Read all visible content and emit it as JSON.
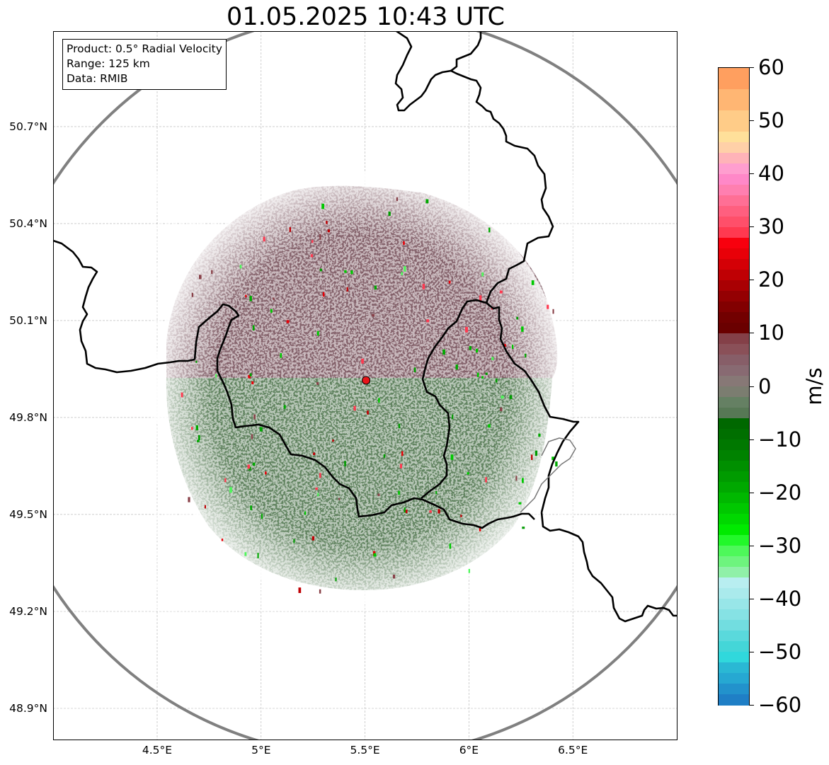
{
  "title": "01.05.2025 10:43 UTC",
  "info": {
    "product": "Product: 0.5° Radial Velocity",
    "range": "Range: 125 km",
    "data": "Data: RMIB"
  },
  "map": {
    "lon_range": [
      4.0,
      7.0
    ],
    "lat_range": [
      48.8,
      51.0
    ],
    "radar_site": {
      "lon": 5.505,
      "lat": 49.915,
      "color": "#e8161b"
    },
    "range_ring_color": "#808080",
    "border_color": "#000000",
    "gridlines": true,
    "lat_ticks": [
      {
        "value": 48.9,
        "label": "48.9°N"
      },
      {
        "value": 49.2,
        "label": "49.2°N"
      },
      {
        "value": 49.5,
        "label": "49.5°N"
      },
      {
        "value": 49.8,
        "label": "49.8°N"
      },
      {
        "value": 50.1,
        "label": "50.1°N"
      },
      {
        "value": 50.4,
        "label": "50.4°N"
      },
      {
        "value": 50.7,
        "label": "50.7°N"
      }
    ],
    "lon_ticks": [
      {
        "value": 4.5,
        "label": "4.5°E"
      },
      {
        "value": 5.0,
        "label": "5°E"
      },
      {
        "value": 5.5,
        "label": "5.5°E"
      },
      {
        "value": 6.0,
        "label": "6°E"
      },
      {
        "value": 6.5,
        "label": "6.5°E"
      }
    ],
    "echo_colors": {
      "north_inbound": "#7e5b64",
      "south_outbound": "#5a7d59"
    }
  },
  "colorbar": {
    "unit": "m/s",
    "min": -60,
    "max": 60,
    "ticks": [
      {
        "value": 60,
        "label": "60"
      },
      {
        "value": 50,
        "label": "50"
      },
      {
        "value": 40,
        "label": "40"
      },
      {
        "value": 30,
        "label": "30"
      },
      {
        "value": 20,
        "label": "20"
      },
      {
        "value": 10,
        "label": "10"
      },
      {
        "value": 0,
        "label": "0"
      },
      {
        "value": -10,
        "label": "−10"
      },
      {
        "value": -20,
        "label": "−20"
      },
      {
        "value": -30,
        "label": "−30"
      },
      {
        "value": -40,
        "label": "−40"
      },
      {
        "value": -50,
        "label": "−50"
      },
      {
        "value": -60,
        "label": "−60"
      }
    ],
    "bands": [
      {
        "from": 56,
        "to": 60,
        "color": "#ff9f5f"
      },
      {
        "from": 52,
        "to": 56,
        "color": "#ffb673"
      },
      {
        "from": 48,
        "to": 52,
        "color": "#ffcc88"
      },
      {
        "from": 46,
        "to": 48,
        "color": "#ffe09a"
      },
      {
        "from": 44,
        "to": 46,
        "color": "#ffd0a8"
      },
      {
        "from": 42,
        "to": 44,
        "color": "#ffb3b8"
      },
      {
        "from": 40,
        "to": 42,
        "color": "#ff9ecf"
      },
      {
        "from": 38,
        "to": 40,
        "color": "#ff88c8"
      },
      {
        "from": 36,
        "to": 38,
        "color": "#ff7fb0"
      },
      {
        "from": 34,
        "to": 36,
        "color": "#ff6f95"
      },
      {
        "from": 32,
        "to": 34,
        "color": "#ff5f7f"
      },
      {
        "from": 30,
        "to": 32,
        "color": "#ff4f6a"
      },
      {
        "from": 28,
        "to": 30,
        "color": "#ff3950"
      },
      {
        "from": 26,
        "to": 28,
        "color": "#f8000e"
      },
      {
        "from": 24,
        "to": 26,
        "color": "#e80008"
      },
      {
        "from": 22,
        "to": 24,
        "color": "#d40006"
      },
      {
        "from": 20,
        "to": 22,
        "color": "#bf0004"
      },
      {
        "from": 18,
        "to": 20,
        "color": "#a90003"
      },
      {
        "from": 16,
        "to": 18,
        "color": "#940002"
      },
      {
        "from": 14,
        "to": 16,
        "color": "#820001"
      },
      {
        "from": 12,
        "to": 14,
        "color": "#720000"
      },
      {
        "from": 10,
        "to": 12,
        "color": "#6a0000"
      },
      {
        "from": 8,
        "to": 10,
        "color": "#844048"
      },
      {
        "from": 6,
        "to": 8,
        "color": "#8a5058"
      },
      {
        "from": 4,
        "to": 6,
        "color": "#875e68"
      },
      {
        "from": 2,
        "to": 4,
        "color": "#886a72"
      },
      {
        "from": 0,
        "to": 2,
        "color": "#877876"
      },
      {
        "from": -2,
        "to": 0,
        "color": "#7b7d70"
      },
      {
        "from": -4,
        "to": -2,
        "color": "#658063"
      },
      {
        "from": -6,
        "to": -4,
        "color": "#577855"
      },
      {
        "from": -8,
        "to": -6,
        "color": "#006800"
      },
      {
        "from": -10,
        "to": -8,
        "color": "#006f00"
      },
      {
        "from": -12,
        "to": -10,
        "color": "#007800"
      },
      {
        "from": -14,
        "to": -12,
        "color": "#008200"
      },
      {
        "from": -16,
        "to": -14,
        "color": "#008f00"
      },
      {
        "from": -18,
        "to": -16,
        "color": "#009b00"
      },
      {
        "from": -20,
        "to": -18,
        "color": "#00a800"
      },
      {
        "from": -22,
        "to": -20,
        "color": "#00b800"
      },
      {
        "from": -24,
        "to": -22,
        "color": "#00c800"
      },
      {
        "from": -26,
        "to": -24,
        "color": "#00d800"
      },
      {
        "from": -28,
        "to": -26,
        "color": "#00ea00"
      },
      {
        "from": -30,
        "to": -28,
        "color": "#22f82a"
      },
      {
        "from": -32,
        "to": -30,
        "color": "#4ef85a"
      },
      {
        "from": -34,
        "to": -32,
        "color": "#6ef47e"
      },
      {
        "from": -36,
        "to": -34,
        "color": "#90f0a8"
      },
      {
        "from": -38,
        "to": -36,
        "color": "#b8eef0"
      },
      {
        "from": -40,
        "to": -38,
        "color": "#aaeaec"
      },
      {
        "from": -42,
        "to": -40,
        "color": "#98e6e8"
      },
      {
        "from": -44,
        "to": -42,
        "color": "#86e2e4"
      },
      {
        "from": -46,
        "to": -44,
        "color": "#72dde0"
      },
      {
        "from": -48,
        "to": -46,
        "color": "#5ad9dc"
      },
      {
        "from": -50,
        "to": -48,
        "color": "#44d6d8"
      },
      {
        "from": -52,
        "to": -50,
        "color": "#30d8dc"
      },
      {
        "from": -54,
        "to": -52,
        "color": "#2ab8d4"
      },
      {
        "from": -56,
        "to": -54,
        "color": "#26a8d2"
      },
      {
        "from": -58,
        "to": -56,
        "color": "#2292cc"
      },
      {
        "from": -60,
        "to": -58,
        "color": "#1f7fc6"
      }
    ]
  }
}
